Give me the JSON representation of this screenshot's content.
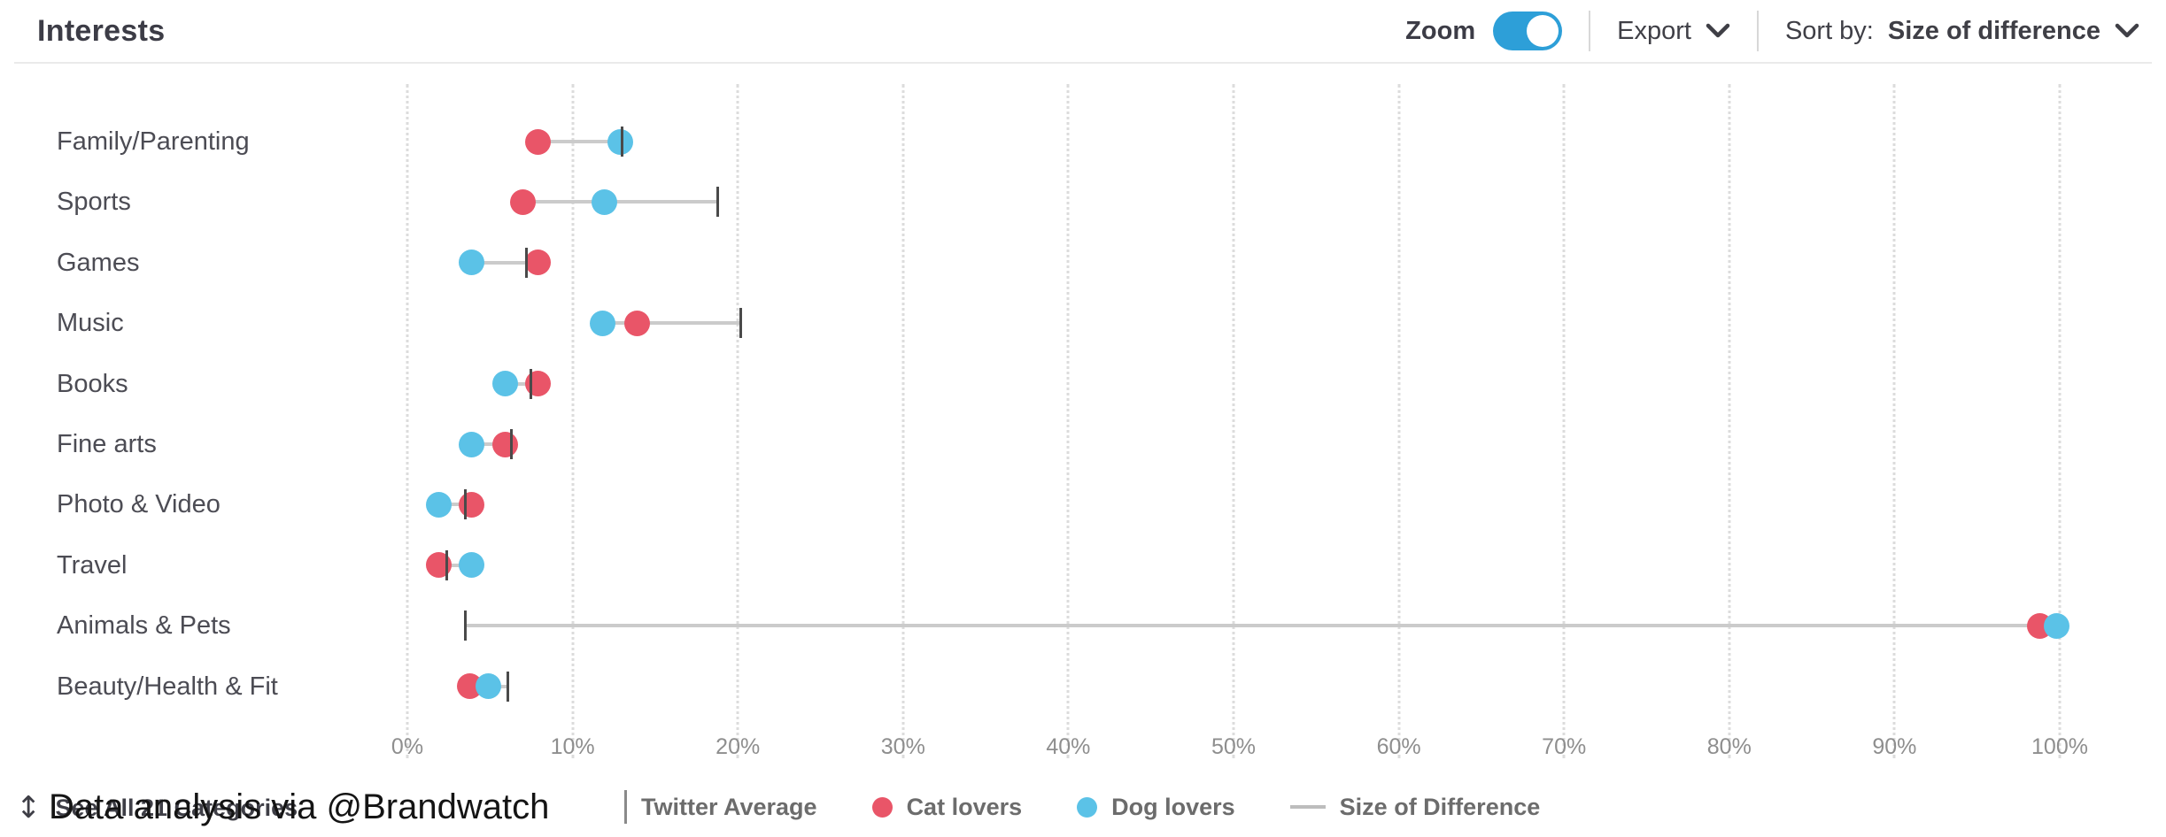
{
  "header": {
    "title": "Interests",
    "zoom_label": "Zoom",
    "zoom_on": true,
    "export_label": "Export",
    "sort_by_label": "Sort by:",
    "sort_by_value": "Size of difference"
  },
  "chart_data": {
    "type": "scatter",
    "subtype": "dumbbell dot plot (horizontal)",
    "title": "Interests",
    "categories": [
      "Family/Parenting",
      "Sports",
      "Games",
      "Music",
      "Books",
      "Fine arts",
      "Photo & Video",
      "Travel",
      "Animals & Pets",
      "Beauty/Health & Fit"
    ],
    "series": [
      {
        "name": "Cat lovers",
        "marker": "dot",
        "color": "#e95568",
        "values": [
          7.9,
          7.0,
          7.9,
          13.9,
          7.9,
          5.9,
          3.9,
          1.9,
          98.8,
          3.8
        ]
      },
      {
        "name": "Dog lovers",
        "marker": "dot",
        "color": "#5bc2e7",
        "values": [
          12.9,
          11.9,
          3.9,
          11.8,
          5.9,
          3.9,
          1.9,
          3.9,
          99.8,
          4.9
        ]
      },
      {
        "name": "Twitter Average",
        "marker": "vertical-tick",
        "color": "#4a4a4a",
        "values": [
          13.0,
          18.8,
          7.2,
          20.2,
          7.5,
          6.3,
          3.5,
          2.4,
          3.5,
          6.1
        ]
      }
    ],
    "connector_note": "gray 'Size of Difference' line spans min to max marker in each row",
    "connector_color": "#cbcbcb",
    "x_ticks": [
      "0%",
      "10%",
      "20%",
      "30%",
      "40%",
      "50%",
      "60%",
      "70%",
      "80%",
      "90%",
      "100%"
    ],
    "xlim": [
      0,
      100
    ],
    "grid": "vertical dotted gridlines",
    "legend_position": "bottom"
  },
  "footer": {
    "see_all_label": "See All 21 Categories",
    "caption": "Data analysis via @Brandwatch",
    "legend": [
      {
        "label": "Twitter Average",
        "marker": "tick",
        "color": "#8a8a8a"
      },
      {
        "label": "Cat lovers",
        "marker": "dot",
        "color": "#e95568"
      },
      {
        "label": "Dog lovers",
        "marker": "dot",
        "color": "#5bc2e7"
      },
      {
        "label": "Size of Difference",
        "marker": "line",
        "color": "#bdbdbd"
      }
    ]
  }
}
